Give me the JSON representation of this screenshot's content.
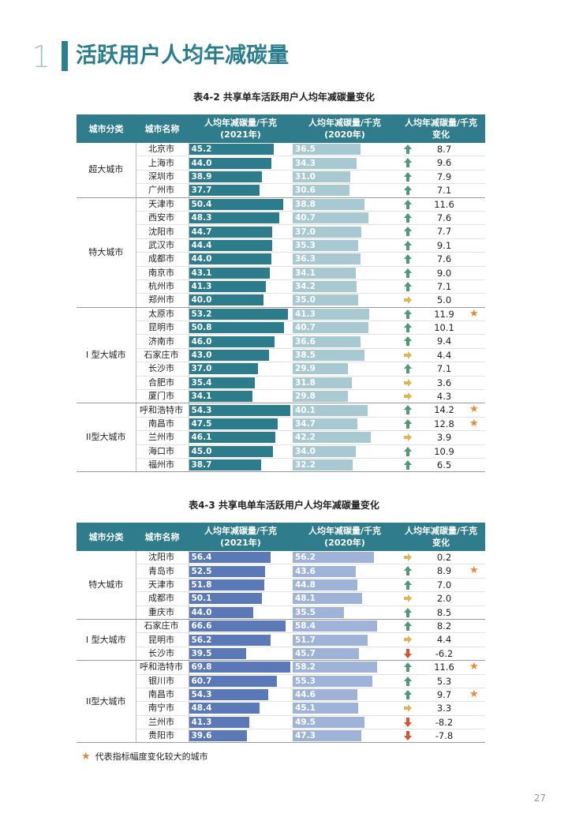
{
  "header": {
    "number": "1",
    "title": "活跃用户人均年减碳量"
  },
  "table1": {
    "caption": "表4-2 共享单车活跃用户人均年减碳量变化",
    "headers": {
      "category": "城市分类",
      "city": "城市名称",
      "y2021": "人均年减碳量/千克",
      "y2021_sub": "(2021年)",
      "y2020": "人均年减碳量/千克",
      "y2020_sub": "(2020年)",
      "change": "人均年减碳量/千克",
      "change_sub": "变化"
    },
    "groups": [
      {
        "name": "超大城市",
        "rows": [
          {
            "city": "北京市",
            "v2021": 45.2,
            "v2020": 36.5,
            "trend": "up",
            "change": "8.7",
            "star": false
          },
          {
            "city": "上海市",
            "v2021": 44.0,
            "v2020": 34.3,
            "trend": "up",
            "change": "9.6",
            "star": false
          },
          {
            "city": "深圳市",
            "v2021": 38.9,
            "v2020": 31.0,
            "trend": "up",
            "change": "7.9",
            "star": false
          },
          {
            "city": "广州市",
            "v2021": 37.7,
            "v2020": 30.6,
            "trend": "up",
            "change": "7.1",
            "star": false
          }
        ]
      },
      {
        "name": "特大城市",
        "rows": [
          {
            "city": "天津市",
            "v2021": 50.4,
            "v2020": 38.8,
            "trend": "up",
            "change": "11.6",
            "star": false
          },
          {
            "city": "西安市",
            "v2021": 48.3,
            "v2020": 40.7,
            "trend": "up",
            "change": "7.6",
            "star": false
          },
          {
            "city": "沈阳市",
            "v2021": 44.7,
            "v2020": 37.0,
            "trend": "up",
            "change": "7.7",
            "star": false
          },
          {
            "city": "武汉市",
            "v2021": 44.4,
            "v2020": 35.3,
            "trend": "up",
            "change": "9.1",
            "star": false
          },
          {
            "city": "成都市",
            "v2021": 44.0,
            "v2020": 36.3,
            "trend": "up",
            "change": "7.6",
            "star": false
          },
          {
            "city": "南京市",
            "v2021": 43.1,
            "v2020": 34.1,
            "trend": "up",
            "change": "9.0",
            "star": false
          },
          {
            "city": "杭州市",
            "v2021": 41.3,
            "v2020": 34.2,
            "trend": "up",
            "change": "7.1",
            "star": false
          },
          {
            "city": "郑州市",
            "v2021": 40.0,
            "v2020": 35.0,
            "trend": "right",
            "change": "5.0",
            "star": false
          }
        ]
      },
      {
        "name": "I 型大城市",
        "rows": [
          {
            "city": "太原市",
            "v2021": 53.2,
            "v2020": 41.3,
            "trend": "up",
            "change": "11.9",
            "star": true
          },
          {
            "city": "昆明市",
            "v2021": 50.8,
            "v2020": 40.7,
            "trend": "up",
            "change": "10.1",
            "star": false
          },
          {
            "city": "济南市",
            "v2021": 46.0,
            "v2020": 36.6,
            "trend": "up",
            "change": "9.4",
            "star": false
          },
          {
            "city": "石家庄市",
            "v2021": 43.0,
            "v2020": 38.5,
            "trend": "right",
            "change": "4.4",
            "star": false
          },
          {
            "city": "长沙市",
            "v2021": 37.0,
            "v2020": 29.9,
            "trend": "up",
            "change": "7.1",
            "star": false
          },
          {
            "city": "合肥市",
            "v2021": 35.4,
            "v2020": 31.8,
            "trend": "right",
            "change": "3.6",
            "star": false
          },
          {
            "city": "厦门市",
            "v2021": 34.1,
            "v2020": 29.8,
            "trend": "right",
            "change": "4.3",
            "star": false
          }
        ]
      },
      {
        "name": "II型大城市",
        "rows": [
          {
            "city": "呼和浩特市",
            "v2021": 54.3,
            "v2020": 40.1,
            "trend": "up",
            "change": "14.2",
            "star": true
          },
          {
            "city": "南昌市",
            "v2021": 47.5,
            "v2020": 34.7,
            "trend": "up",
            "change": "12.8",
            "star": true
          },
          {
            "city": "兰州市",
            "v2021": 46.1,
            "v2020": 42.2,
            "trend": "right",
            "change": "3.9",
            "star": false
          },
          {
            "city": "海口市",
            "v2021": 45.0,
            "v2020": 34.0,
            "trend": "up",
            "change": "10.9",
            "star": false
          },
          {
            "city": "福州市",
            "v2021": 38.7,
            "v2020": 32.2,
            "trend": "up",
            "change": "6.5",
            "star": false
          }
        ]
      }
    ]
  },
  "table2": {
    "caption": "表4-3 共享电单车活跃用户人均年减碳量变化",
    "headers": {
      "category": "城市分类",
      "city": "城市名称",
      "y2021": "人均年减碳量/千克",
      "y2021_sub": "(2021年)",
      "y2020": "人均年减碳量/千克",
      "y2020_sub": "(2020年)",
      "change": "人均年减碳量/千克",
      "change_sub": "变化"
    },
    "groups": [
      {
        "name": "特大城市",
        "rows": [
          {
            "city": "沈阳市",
            "v2021": 56.4,
            "v2020": 56.2,
            "trend": "right",
            "change": "0.2",
            "star": false
          },
          {
            "city": "青岛市",
            "v2021": 52.5,
            "v2020": 43.6,
            "trend": "up",
            "change": "8.9",
            "star": true
          },
          {
            "city": "天津市",
            "v2021": 51.8,
            "v2020": 44.8,
            "trend": "up",
            "change": "7.0",
            "star": false
          },
          {
            "city": "成都市",
            "v2021": 50.1,
            "v2020": 48.1,
            "trend": "right",
            "change": "2.0",
            "star": false
          },
          {
            "city": "重庆市",
            "v2021": 44.0,
            "v2020": 35.5,
            "trend": "up",
            "change": "8.5",
            "star": false
          }
        ]
      },
      {
        "name": "I 型大城市",
        "rows": [
          {
            "city": "石家庄市",
            "v2021": 66.6,
            "v2020": 58.4,
            "trend": "up",
            "change": "8.2",
            "star": false
          },
          {
            "city": "昆明市",
            "v2021": 56.2,
            "v2020": 51.7,
            "trend": "right",
            "change": "4.4",
            "star": false
          },
          {
            "city": "长沙市",
            "v2021": 39.5,
            "v2020": 45.7,
            "trend": "down",
            "change": "-6.2",
            "star": false
          }
        ]
      },
      {
        "name": "II型大城市",
        "rows": [
          {
            "city": "呼和浩特市",
            "v2021": 69.8,
            "v2020": 58.2,
            "trend": "up",
            "change": "11.6",
            "star": true
          },
          {
            "city": "银川市",
            "v2021": 60.7,
            "v2020": 55.3,
            "trend": "up",
            "change": "5.3",
            "star": false
          },
          {
            "city": "南昌市",
            "v2021": 54.3,
            "v2020": 44.6,
            "trend": "up",
            "change": "9.7",
            "star": true
          },
          {
            "city": "南宁市",
            "v2021": 48.4,
            "v2020": 45.1,
            "trend": "right",
            "change": "3.3",
            "star": false
          },
          {
            "city": "兰州市",
            "v2021": 41.3,
            "v2020": 49.5,
            "trend": "down",
            "change": "-8.2",
            "star": false
          },
          {
            "city": "贵阳市",
            "v2021": 39.6,
            "v2020": 47.3,
            "trend": "down",
            "change": "-7.8",
            "star": false
          }
        ]
      }
    ]
  },
  "legend": {
    "text": "代表指标幅度变化较大的城市"
  },
  "colors": {
    "teal": "#2d7c8b",
    "up": "#4e9a78",
    "right": "#e0b55a",
    "down": "#d9532f",
    "star": "#e98934"
  },
  "page_number": "27"
}
